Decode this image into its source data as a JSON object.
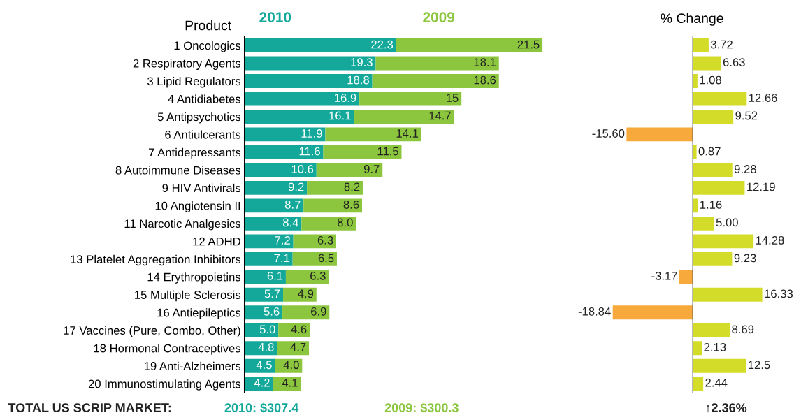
{
  "chart_data": [
    {
      "type": "bar",
      "orientation": "horizontal",
      "stacked": true,
      "ylabel": "Product",
      "legend": "top",
      "tick_labels": "y",
      "grid": false,
      "categories": [
        "1 Oncologics",
        "2 Respiratory Agents",
        "3 Lipid Regulators",
        "4 Antidiabetes",
        "5 Antipsychotics",
        "6 Antiulcerants",
        "7 Antidepressants",
        "8 Autoimmune Diseases",
        "9 HIV Antivirals",
        "10 Angiotensin II",
        "11 Narcotic Analgesics",
        "12 ADHD",
        "13 Platelet Aggregation Inhibitors",
        "14 Erythropoietins",
        "15 Multiple Sclerosis",
        "16 Antiepileptics",
        "17 Vaccines (Pure, Combo, Other)",
        "18 Hormonal Contraceptives",
        "19 Anti-Alzheimers",
        "20 Immunostimulating Agents"
      ],
      "series": [
        {
          "name": "2010",
          "color": "#14a89a",
          "values": [
            22.3,
            19.3,
            18.8,
            16.9,
            16.1,
            11.9,
            11.6,
            10.6,
            9.2,
            8.7,
            8.4,
            7.2,
            7.1,
            6.1,
            5.7,
            5.6,
            5.0,
            4.8,
            4.5,
            4.2
          ],
          "value_labels": [
            "22.3",
            "19.3",
            "18.8",
            "16.9",
            "16.1",
            "11.9",
            "11.6",
            "10.6",
            "9.2",
            "8.7",
            "8.4",
            "7.2",
            "7.1",
            "6.1",
            "5.7",
            "5.6",
            "5.0",
            "4.8",
            "4.5",
            "4.2"
          ]
        },
        {
          "name": "2009",
          "color": "#8cc63f",
          "values": [
            21.5,
            18.1,
            18.6,
            15,
            14.7,
            14.1,
            11.5,
            9.7,
            8.2,
            8.6,
            8.0,
            6.3,
            6.5,
            6.3,
            4.9,
            6.9,
            4.6,
            4.7,
            4.0,
            4.1
          ],
          "value_labels": [
            "21.5",
            "18.1",
            "18.6",
            "15",
            "14.7",
            "14.1",
            "11.5",
            "9.7",
            "8.2",
            "8.6",
            "8.0",
            "6.3",
            "6.5",
            "6.3",
            "4.9",
            "6.9",
            "4.6",
            "4.7",
            "4.0",
            "4.1"
          ]
        }
      ],
      "annotations": [
        "TOTAL US SCRIP MARKET:",
        "2010: $307.4",
        "2009: $300.3"
      ]
    },
    {
      "type": "bar",
      "orientation": "horizontal",
      "title": "% Change",
      "tick_labels": false,
      "grid": false,
      "series": [
        {
          "colors": [
            "#d4dc2a",
            "#d4dc2a",
            "#d4dc2a",
            "#d4dc2a",
            "#d4dc2a",
            "#f7a93b",
            "#d4dc2a",
            "#d4dc2a",
            "#d4dc2a",
            "#d4dc2a",
            "#d4dc2a",
            "#d4dc2a",
            "#d4dc2a",
            "#f7a93b",
            "#d4dc2a",
            "#f7a93b",
            "#d4dc2a",
            "#d4dc2a",
            "#d4dc2a",
            "#d4dc2a"
          ],
          "values": [
            3.72,
            6.63,
            1.08,
            12.66,
            9.52,
            -15.6,
            0.87,
            9.28,
            12.19,
            1.16,
            5.0,
            14.28,
            9.23,
            -3.17,
            16.33,
            -18.84,
            8.69,
            2.13,
            12.5,
            2.44
          ],
          "value_labels": [
            "3.72",
            "6.63",
            "1.08",
            "12.66",
            "9.52",
            "-15.60",
            "0.87",
            "9.28",
            "12.19",
            "1.16",
            "5.00",
            "14.28",
            "9.23",
            "-3.17",
            "16.33",
            "-18.84",
            "8.69",
            "2.13",
            "12.5",
            "2.44"
          ]
        }
      ],
      "annotations": [
        "↑2.36%"
      ]
    }
  ]
}
